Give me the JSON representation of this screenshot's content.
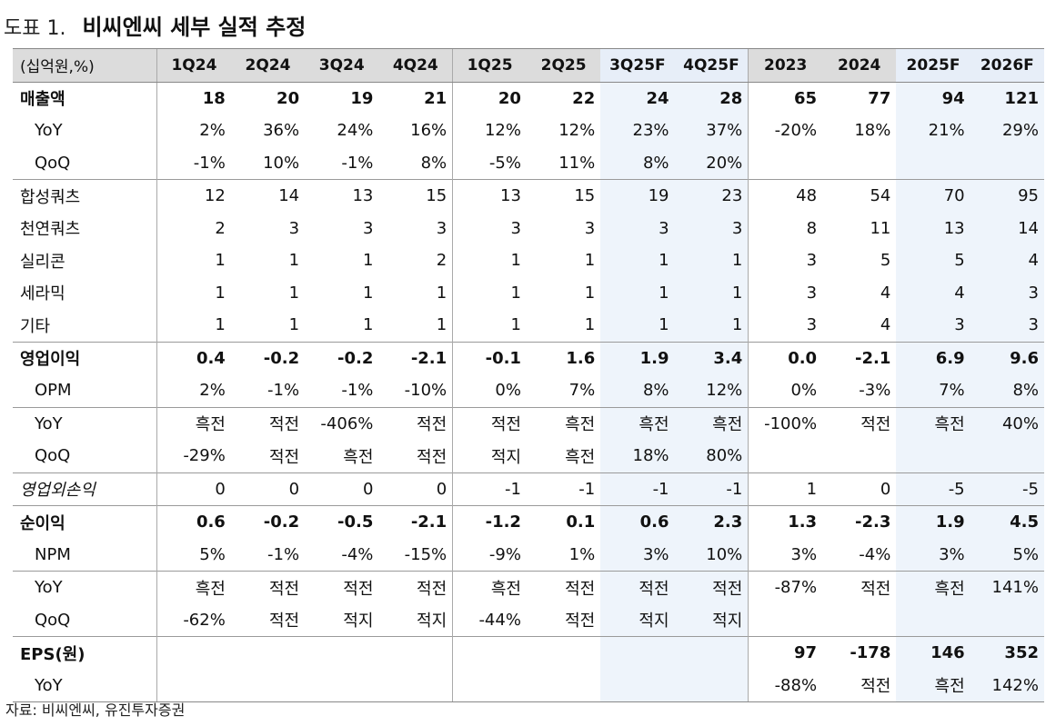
{
  "title": {
    "label": "도표 1.",
    "text": "비씨엔씨 세부 실적 추정"
  },
  "columns": [
    "(십억원,%)",
    "1Q24",
    "2Q24",
    "3Q24",
    "4Q24",
    "1Q25",
    "2Q25",
    "3Q25F",
    "4Q25F",
    "2023",
    "2024",
    "2025F",
    "2026F"
  ],
  "rows": [
    {
      "label": "매출액",
      "cells": [
        "18",
        "20",
        "19",
        "21",
        "20",
        "22",
        "24",
        "28",
        "65",
        "77",
        "94",
        "121"
      ]
    },
    {
      "label": "YoY",
      "cells": [
        "2%",
        "36%",
        "24%",
        "16%",
        "12%",
        "12%",
        "23%",
        "37%",
        "-20%",
        "18%",
        "21%",
        "29%"
      ]
    },
    {
      "label": "QoQ",
      "cells": [
        "-1%",
        "10%",
        "-1%",
        "8%",
        "-5%",
        "11%",
        "8%",
        "20%",
        "",
        "",
        "",
        ""
      ]
    },
    {
      "label": "합성쿼츠",
      "cells": [
        "12",
        "14",
        "13",
        "15",
        "13",
        "15",
        "19",
        "23",
        "48",
        "54",
        "70",
        "95"
      ]
    },
    {
      "label": "천연쿼츠",
      "cells": [
        "2",
        "3",
        "3",
        "3",
        "3",
        "3",
        "3",
        "3",
        "8",
        "11",
        "13",
        "14"
      ]
    },
    {
      "label": "실리콘",
      "cells": [
        "1",
        "1",
        "1",
        "2",
        "1",
        "1",
        "1",
        "1",
        "3",
        "5",
        "5",
        "4"
      ]
    },
    {
      "label": "세라믹",
      "cells": [
        "1",
        "1",
        "1",
        "1",
        "1",
        "1",
        "1",
        "1",
        "3",
        "4",
        "4",
        "3"
      ]
    },
    {
      "label": "기타",
      "cells": [
        "1",
        "1",
        "1",
        "1",
        "1",
        "1",
        "1",
        "1",
        "3",
        "4",
        "3",
        "3"
      ]
    },
    {
      "label": "영업이익",
      "cells": [
        "0.4",
        "-0.2",
        "-0.2",
        "-2.1",
        "-0.1",
        "1.6",
        "1.9",
        "3.4",
        "0.0",
        "-2.1",
        "6.9",
        "9.6"
      ]
    },
    {
      "label": "OPM",
      "cells": [
        "2%",
        "-1%",
        "-1%",
        "-10%",
        "0%",
        "7%",
        "8%",
        "12%",
        "0%",
        "-3%",
        "7%",
        "8%"
      ]
    },
    {
      "label": "YoY",
      "cells": [
        "흑전",
        "적전",
        "-406%",
        "적전",
        "적전",
        "흑전",
        "흑전",
        "흑전",
        "-100%",
        "적전",
        "흑전",
        "40%"
      ]
    },
    {
      "label": "QoQ",
      "cells": [
        "-29%",
        "적전",
        "흑전",
        "적전",
        "적지",
        "흑전",
        "18%",
        "80%",
        "",
        "",
        "",
        ""
      ]
    },
    {
      "label": "영업외손익",
      "cells": [
        "0",
        "0",
        "0",
        "0",
        "-1",
        "-1",
        "-1",
        "-1",
        "1",
        "0",
        "-5",
        "-5"
      ]
    },
    {
      "label": "순이익",
      "cells": [
        "0.6",
        "-0.2",
        "-0.5",
        "-2.1",
        "-1.2",
        "0.1",
        "0.6",
        "2.3",
        "1.3",
        "-2.3",
        "1.9",
        "4.5"
      ]
    },
    {
      "label": "NPM",
      "cells": [
        "5%",
        "-1%",
        "-4%",
        "-15%",
        "-9%",
        "1%",
        "3%",
        "10%",
        "3%",
        "-4%",
        "3%",
        "5%"
      ]
    },
    {
      "label": "YoY",
      "cells": [
        "흑전",
        "적전",
        "적전",
        "적전",
        "흑전",
        "적전",
        "적전",
        "적전",
        "-87%",
        "적전",
        "흑전",
        "141%"
      ]
    },
    {
      "label": "QoQ",
      "cells": [
        "-62%",
        "적전",
        "적지",
        "적지",
        "-44%",
        "적전",
        "적지",
        "적지",
        "",
        "",
        "",
        ""
      ]
    },
    {
      "label": "EPS(원)",
      "cells": [
        "",
        "",
        "",
        "",
        "",
        "",
        "",
        "",
        "97",
        "-178",
        "146",
        "352"
      ]
    },
    {
      "label": "YoY",
      "cells": [
        "",
        "",
        "",
        "",
        "",
        "",
        "",
        "",
        "-88%",
        "적전",
        "흑전",
        "142%"
      ]
    }
  ],
  "source": "자료: 비씨엔씨, 유진투자증권",
  "colors": {
    "header_bg": "#dcdcdc",
    "forecast_shade": "#eef4fb",
    "rule": "#888888"
  }
}
